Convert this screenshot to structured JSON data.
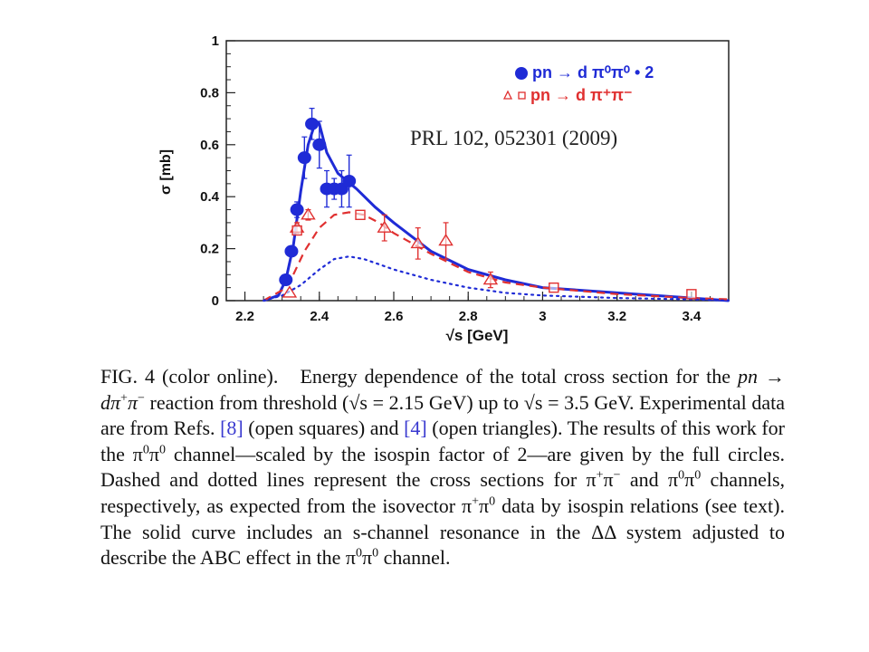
{
  "chart_data": {
    "type": "scatter",
    "xlabel": "√s [GeV]",
    "ylabel": "σ [mb]",
    "xlim": [
      2.15,
      3.5
    ],
    "ylim": [
      0,
      1.0
    ],
    "x_ticks": [
      "2.2",
      "2.4",
      "2.6",
      "2.8",
      "3",
      "3.2",
      "3.4"
    ],
    "y_ticks": [
      "0",
      "0.2",
      "0.4",
      "0.6",
      "0.8",
      "1"
    ],
    "annotation": "PRL 102, 052301 (2009)",
    "legend": [
      {
        "label": "pn → d π⁰π⁰ • 2",
        "marker": "filled-circle",
        "color": "#1f2bd6"
      },
      {
        "label": "pn → d π⁺π⁻",
        "marker": "open-triangle-square",
        "color": "#e03030"
      }
    ],
    "series": [
      {
        "name": "pn → d π⁰π⁰ • 2",
        "marker": "filled-circle",
        "color": "#1f2bd6",
        "points": [
          [
            2.31,
            0.08,
            0.01
          ],
          [
            2.325,
            0.19,
            0.02
          ],
          [
            2.34,
            0.35,
            0.03
          ],
          [
            2.36,
            0.55,
            0.08
          ],
          [
            2.38,
            0.68,
            0.06
          ],
          [
            2.4,
            0.6,
            0.09
          ],
          [
            2.42,
            0.43,
            0.07
          ],
          [
            2.44,
            0.43,
            0.04
          ],
          [
            2.46,
            0.43,
            0.07
          ],
          [
            2.48,
            0.46,
            0.1
          ]
        ]
      },
      {
        "name": "pn → d π⁺π⁻ (triangles)",
        "marker": "open-triangle",
        "color": "#e03030",
        "points": [
          [
            2.32,
            0.03,
            0.005
          ],
          [
            2.34,
            0.28,
            0.02
          ],
          [
            2.37,
            0.33,
            0.02
          ],
          [
            2.575,
            0.28,
            0.05
          ],
          [
            2.665,
            0.22,
            0.06
          ],
          [
            2.74,
            0.23,
            0.07
          ],
          [
            2.86,
            0.08,
            0.03
          ]
        ]
      },
      {
        "name": "pn → d π⁺π⁻ (squares)",
        "marker": "open-square",
        "color": "#e03030",
        "points": [
          [
            2.34,
            0.27,
            0.01
          ],
          [
            2.51,
            0.33,
            0.01
          ],
          [
            3.03,
            0.05,
            0.01
          ],
          [
            3.4,
            0.025,
            0.005
          ]
        ]
      },
      {
        "name": "solid",
        "style": "solid",
        "color": "#1f2bd6",
        "x": [
          2.25,
          2.29,
          2.31,
          2.33,
          2.35,
          2.37,
          2.39,
          2.4,
          2.42,
          2.45,
          2.5,
          2.55,
          2.6,
          2.7,
          2.8,
          2.9,
          3.0,
          3.2,
          3.4,
          3.5
        ],
        "y": [
          0.0,
          0.02,
          0.08,
          0.21,
          0.42,
          0.6,
          0.69,
          0.68,
          0.57,
          0.49,
          0.43,
          0.36,
          0.3,
          0.19,
          0.12,
          0.08,
          0.05,
          0.03,
          0.01,
          0.0
        ]
      },
      {
        "name": "dashed",
        "style": "dashed",
        "color": "#e03030",
        "x": [
          2.25,
          2.3,
          2.33,
          2.36,
          2.4,
          2.44,
          2.48,
          2.52,
          2.56,
          2.6,
          2.7,
          2.8,
          2.9,
          3.0,
          3.2,
          3.4,
          3.5
        ],
        "y": [
          0.0,
          0.04,
          0.1,
          0.19,
          0.28,
          0.33,
          0.34,
          0.33,
          0.3,
          0.26,
          0.18,
          0.11,
          0.07,
          0.05,
          0.025,
          0.01,
          0.005
        ]
      },
      {
        "name": "dotted",
        "style": "dotted",
        "color": "#1f2bd6",
        "x": [
          2.25,
          2.3,
          2.35,
          2.4,
          2.44,
          2.48,
          2.52,
          2.56,
          2.6,
          2.7,
          2.8,
          2.9,
          3.0,
          3.2,
          3.4,
          3.5
        ],
        "y": [
          0.0,
          0.02,
          0.06,
          0.12,
          0.16,
          0.17,
          0.16,
          0.14,
          0.12,
          0.08,
          0.05,
          0.03,
          0.02,
          0.01,
          0.005,
          0.0
        ]
      }
    ]
  },
  "caption": {
    "fig_label": "FIG. 4 (color online).",
    "t1": "Energy dependence of the total cross section for the ",
    "reaction_a": "pn → dπ",
    "reaction_b": " reaction from threshold (√s = 2.15 GeV) up to √s = 3.5 GeV. Experimental data are from Refs. ",
    "ref1": "[8]",
    "t2": " (open squares) and ",
    "ref2": "[4]",
    "t3": " (open triangles). The results of this work for the π",
    "t4": "π",
    "t5": " channel—scaled by the isospin factor of 2—are given by the full circles. Dashed and dotted lines represent the cross sections for π",
    "t6": "π",
    "t7": " and π",
    "t8": "π",
    "t9": " channels, respectively, as expected from the isovector π",
    "t10": "π",
    "t11": " data by isospin relations (see text). The solid curve includes an s-channel resonance in the ΔΔ system adjusted to describe the ABC effect in the π",
    "t12": "π",
    "t13": " channel.",
    "sup_plus": "+",
    "sup_minus": "−",
    "sup_zero": "0"
  }
}
